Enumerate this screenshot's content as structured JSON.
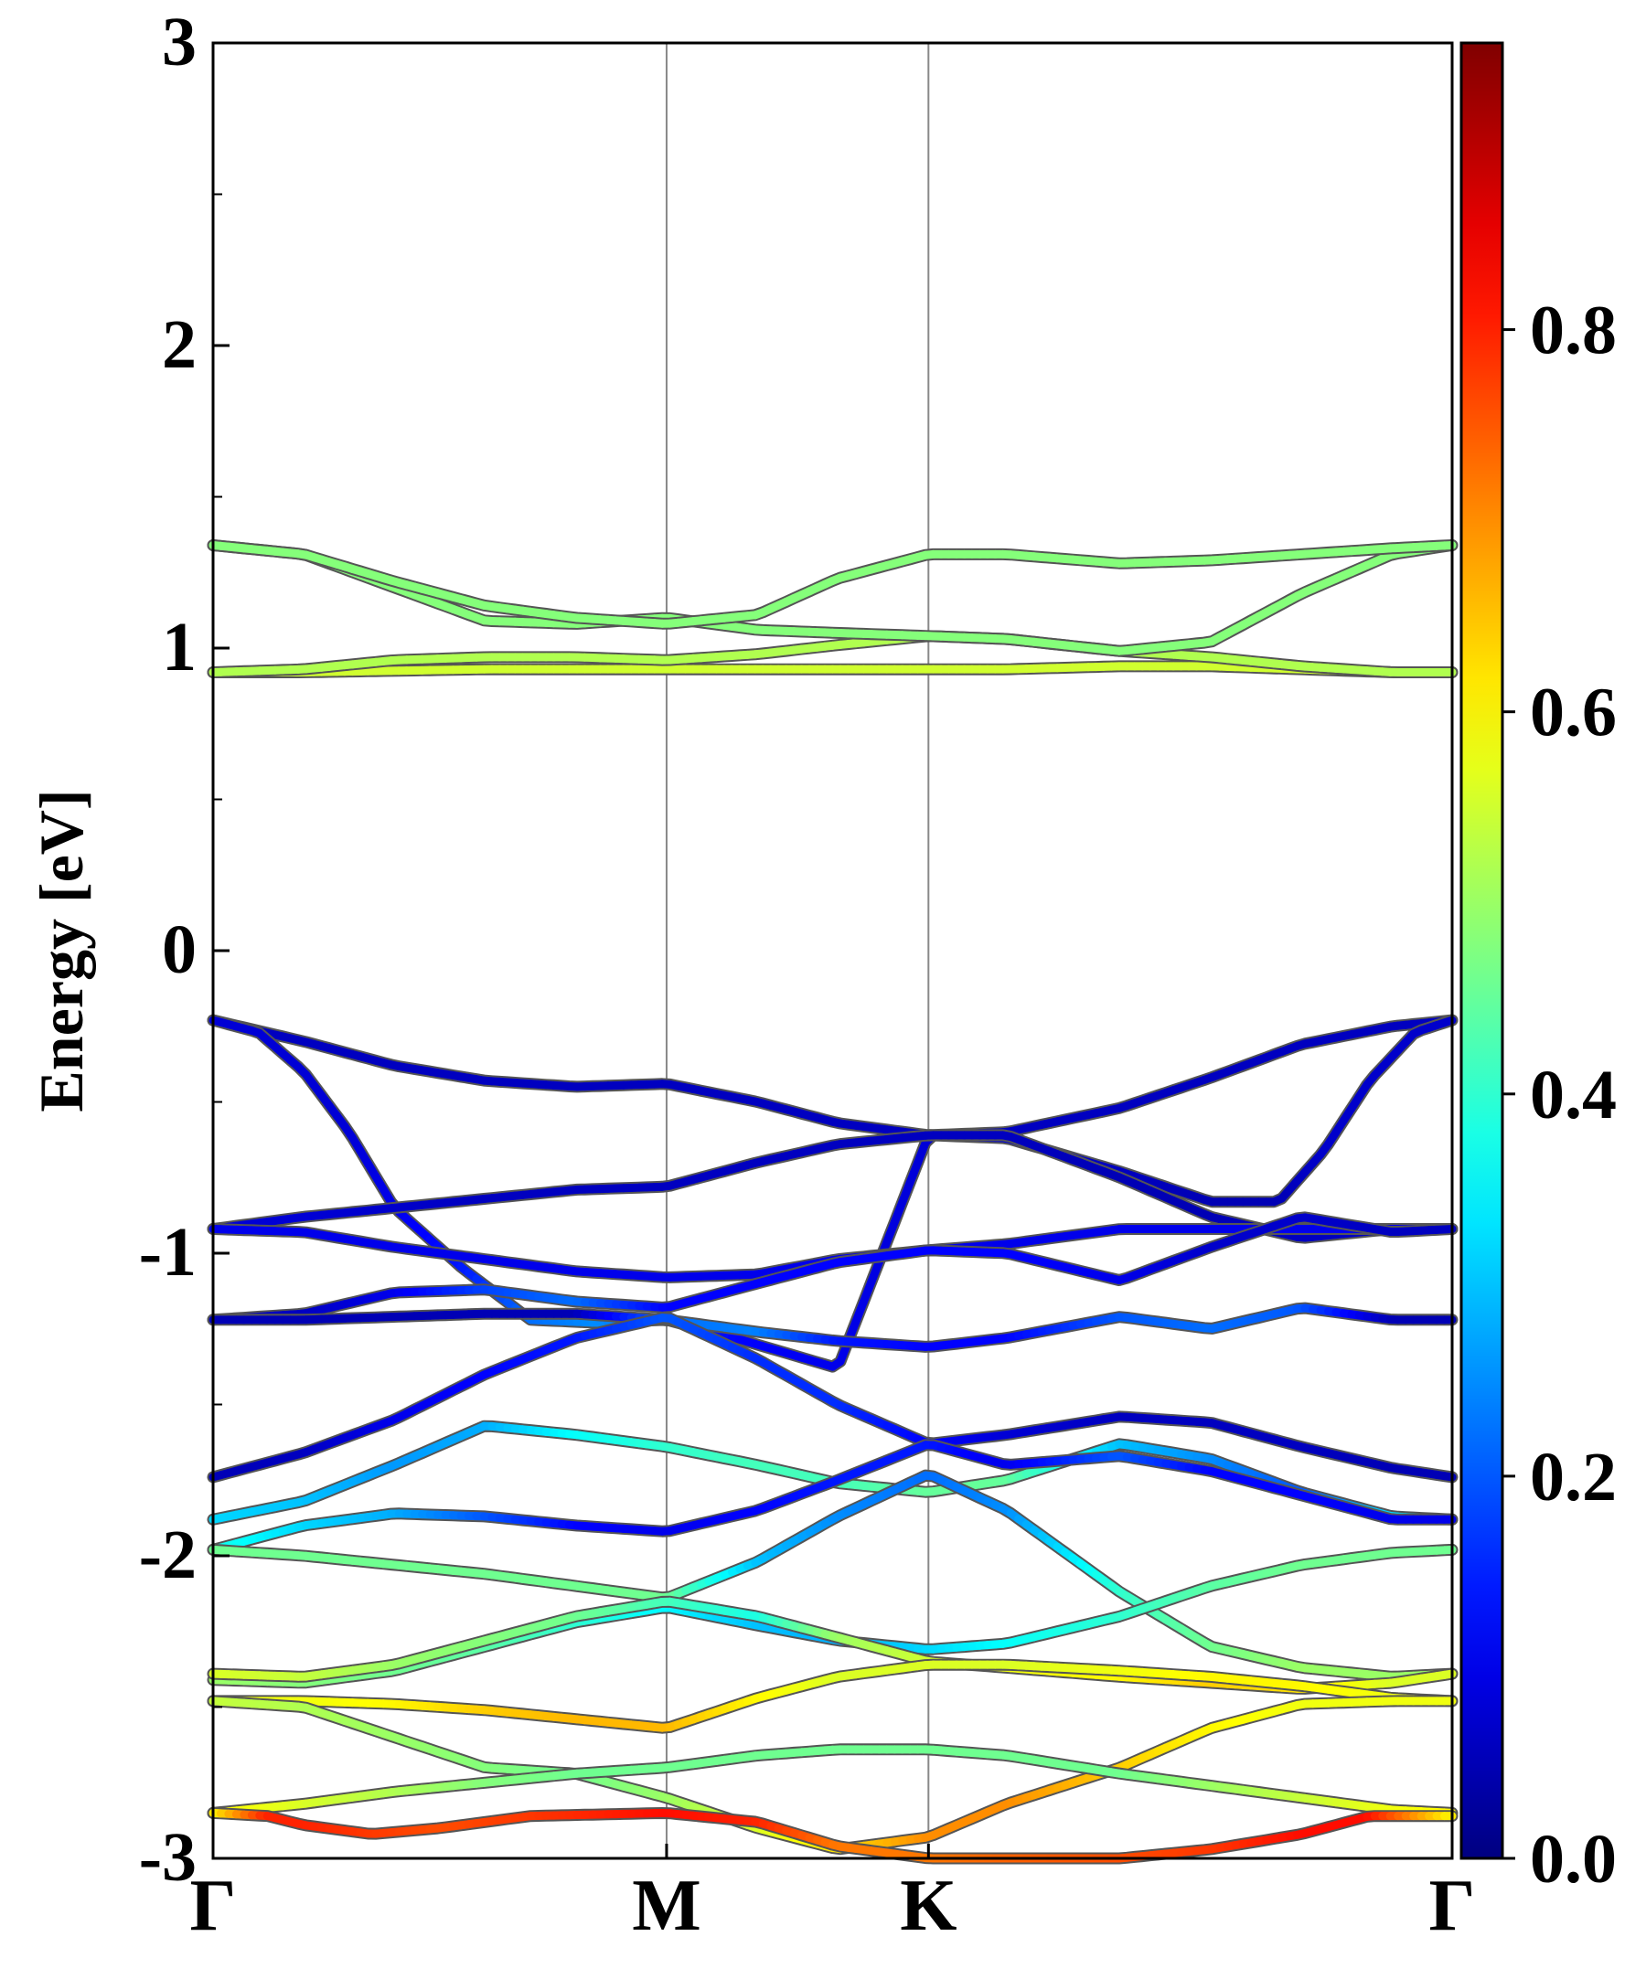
{
  "chart_data": {
    "type": "line",
    "title": "",
    "xlabel": "",
    "ylabel": "Energy [eV]",
    "ylim": [
      -3,
      3
    ],
    "y_ticks": [
      "-3",
      "-2",
      "-1",
      "0",
      "1",
      "2",
      "3"
    ],
    "y_tick_values": [
      -3,
      -2,
      -1,
      0,
      1,
      2,
      3
    ],
    "y_minor_step": 0.5,
    "k_points": [
      "Γ",
      "M",
      "K",
      "Γ"
    ],
    "k_positions": [
      0,
      1,
      1.5774,
      2.7321
    ],
    "colorbar": {
      "colormap": "jet",
      "range": [
        0,
        0.95
      ],
      "ticks": [
        "0.0",
        "0.2",
        "0.4",
        "0.6",
        "0.8"
      ],
      "tick_values": [
        0,
        0.2,
        0.4,
        0.6,
        0.8
      ]
    },
    "series": [
      {
        "x": [
          0,
          0.2,
          0.4,
          0.6,
          0.8,
          1.0,
          1.2,
          1.3774,
          1.5774,
          1.75,
          2.0,
          2.2,
          2.4,
          2.6,
          2.7321
        ],
        "y": [
          0.92,
          0.92,
          0.925,
          0.93,
          0.93,
          0.93,
          0.93,
          0.93,
          0.93,
          0.93,
          0.94,
          0.94,
          0.93,
          0.92,
          0.92
        ],
        "c": [
          0.55,
          0.55,
          0.55,
          0.55,
          0.55,
          0.55,
          0.55,
          0.55,
          0.55,
          0.55,
          0.55,
          0.55,
          0.55,
          0.55,
          0.55
        ]
      },
      {
        "x": [
          0,
          0.2,
          0.4,
          0.6,
          0.8,
          1.0,
          1.2,
          1.3774,
          1.5774,
          1.75,
          2.0,
          2.2,
          2.4,
          2.6,
          2.7321
        ],
        "y": [
          0.92,
          0.93,
          0.96,
          0.97,
          0.97,
          0.96,
          0.98,
          1.01,
          1.04,
          1.03,
          0.99,
          0.97,
          0.94,
          0.92,
          0.92
        ],
        "c": [
          0.52,
          0.52,
          0.52,
          0.52,
          0.52,
          0.52,
          0.52,
          0.52,
          0.52,
          0.52,
          0.52,
          0.52,
          0.52,
          0.52,
          0.52
        ]
      },
      {
        "x": [
          0,
          0.2,
          0.4,
          0.6,
          0.8,
          1.0,
          1.2,
          1.3774,
          1.5774,
          1.75,
          2.0,
          2.2,
          2.4,
          2.6,
          2.7321
        ],
        "y": [
          1.34,
          1.31,
          1.2,
          1.09,
          1.08,
          1.1,
          1.06,
          1.05,
          1.04,
          1.03,
          0.99,
          1.02,
          1.18,
          1.31,
          1.34
        ],
        "c": [
          0.48,
          0.48,
          0.48,
          0.48,
          0.48,
          0.48,
          0.48,
          0.48,
          0.48,
          0.48,
          0.48,
          0.48,
          0.48,
          0.48,
          0.48
        ]
      },
      {
        "x": [
          0,
          0.2,
          0.4,
          0.6,
          0.8,
          1.0,
          1.2,
          1.3774,
          1.5774,
          1.75,
          2.0,
          2.2,
          2.4,
          2.6,
          2.7321
        ],
        "y": [
          1.34,
          1.31,
          1.22,
          1.14,
          1.1,
          1.08,
          1.11,
          1.23,
          1.31,
          1.31,
          1.28,
          1.29,
          1.31,
          1.33,
          1.34
        ],
        "c": [
          0.48,
          0.48,
          0.48,
          0.48,
          0.48,
          0.48,
          0.48,
          0.48,
          0.48,
          0.48,
          0.48,
          0.48,
          0.48,
          0.48,
          0.48
        ]
      },
      {
        "x": [
          0,
          0.2,
          0.4,
          0.6,
          0.8,
          1.0,
          1.2,
          1.3774,
          1.5774,
          1.75,
          2.0,
          2.2,
          2.4,
          2.6,
          2.7321
        ],
        "y": [
          -0.23,
          -0.3,
          -0.38,
          -0.43,
          -0.45,
          -0.44,
          -0.5,
          -0.57,
          -0.61,
          -0.6,
          -0.52,
          -0.42,
          -0.31,
          -0.25,
          -0.23
        ],
        "c": [
          0.06,
          0.06,
          0.06,
          0.06,
          0.06,
          0.06,
          0.06,
          0.06,
          0.06,
          0.06,
          0.06,
          0.06,
          0.06,
          0.06,
          0.06
        ]
      },
      {
        "x": [
          0,
          0.1,
          0.2,
          0.3,
          0.4,
          0.55,
          0.7,
          0.85,
          1.0,
          1.15,
          1.3774,
          1.5774,
          1.75,
          2.0,
          2.2,
          2.35,
          2.45,
          2.55,
          2.65,
          2.7321
        ],
        "y": [
          -0.23,
          -0.27,
          -0.4,
          -0.6,
          -0.85,
          -1.05,
          -1.22,
          -1.23,
          -1.22,
          -1.28,
          -1.38,
          -0.61,
          -0.62,
          -0.73,
          -0.83,
          -0.83,
          -0.66,
          -0.43,
          -0.27,
          -0.23
        ],
        "c": [
          0.08,
          0.08,
          0.08,
          0.08,
          0.1,
          0.14,
          0.22,
          0.25,
          0.2,
          0.12,
          0.1,
          0.08,
          0.08,
          0.06,
          0.05,
          0.05,
          0.07,
          0.07,
          0.07,
          0.07
        ]
      },
      {
        "x": [
          0,
          0.2,
          0.4,
          0.6,
          0.8,
          1.0,
          1.2,
          1.3774,
          1.5774,
          1.75,
          2.0,
          2.2,
          2.4,
          2.6,
          2.7321
        ],
        "y": [
          -0.92,
          -0.88,
          -0.85,
          -0.82,
          -0.79,
          -0.78,
          -0.7,
          -0.64,
          -0.61,
          -0.61,
          -0.75,
          -0.88,
          -0.95,
          -0.92,
          -0.92
        ],
        "c": [
          0.08,
          0.08,
          0.07,
          0.06,
          0.06,
          0.06,
          0.06,
          0.06,
          0.06,
          0.06,
          0.05,
          0.05,
          0.06,
          0.06,
          0.06
        ]
      },
      {
        "x": [
          0,
          0.2,
          0.4,
          0.6,
          0.8,
          1.0,
          1.2,
          1.3774,
          1.5774,
          1.75,
          2.0,
          2.2,
          2.4,
          2.6,
          2.7321
        ],
        "y": [
          -0.92,
          -0.93,
          -0.98,
          -1.02,
          -1.06,
          -1.08,
          -1.07,
          -1.02,
          -0.99,
          -0.97,
          -0.92,
          -0.92,
          -0.92,
          -0.92,
          -0.92
        ],
        "c": [
          0.1,
          0.1,
          0.1,
          0.1,
          0.1,
          0.1,
          0.1,
          0.1,
          0.1,
          0.1,
          0.1,
          0.1,
          0.1,
          0.1,
          0.1
        ]
      },
      {
        "x": [
          0,
          0.2,
          0.4,
          0.6,
          0.8,
          1.0,
          1.2,
          1.3774,
          1.5774,
          1.75,
          2.0,
          2.2,
          2.4,
          2.6,
          2.7321
        ],
        "y": [
          -1.22,
          -1.2,
          -1.13,
          -1.12,
          -1.16,
          -1.18,
          -1.1,
          -1.03,
          -0.99,
          -1.0,
          -1.09,
          -0.98,
          -0.88,
          -0.93,
          -0.92
        ],
        "c": [
          0.06,
          0.06,
          0.1,
          0.18,
          0.22,
          0.12,
          0.12,
          0.12,
          0.12,
          0.12,
          0.1,
          0.07,
          0.07,
          0.06,
          0.06
        ]
      },
      {
        "x": [
          0,
          0.2,
          0.4,
          0.6,
          0.8,
          1.0,
          1.2,
          1.3774,
          1.5774,
          1.75,
          2.0,
          2.2,
          2.4,
          2.6,
          2.7321
        ],
        "y": [
          -1.22,
          -1.22,
          -1.21,
          -1.2,
          -1.2,
          -1.22,
          -1.26,
          -1.29,
          -1.31,
          -1.28,
          -1.21,
          -1.25,
          -1.18,
          -1.22,
          -1.22
        ],
        "c": [
          0.05,
          0.05,
          0.05,
          0.05,
          0.05,
          0.22,
          0.24,
          0.14,
          0.12,
          0.12,
          0.2,
          0.22,
          0.2,
          0.05,
          0.05
        ]
      },
      {
        "x": [
          0,
          0.2,
          0.4,
          0.6,
          0.8,
          1.0,
          1.2,
          1.3774,
          1.5774,
          1.75,
          2.0,
          2.2,
          2.4,
          2.6,
          2.7321
        ],
        "y": [
          -1.74,
          -1.66,
          -1.55,
          -1.4,
          -1.28,
          -1.21,
          -1.35,
          -1.5,
          -1.63,
          -1.6,
          -1.54,
          -1.56,
          -1.64,
          -1.71,
          -1.74
        ],
        "c": [
          0.05,
          0.06,
          0.1,
          0.12,
          0.14,
          0.2,
          0.16,
          0.16,
          0.12,
          0.08,
          0.06,
          0.06,
          0.06,
          0.05,
          0.05
        ]
      },
      {
        "x": [
          0,
          0.2,
          0.4,
          0.6,
          0.8,
          1.0,
          1.2,
          1.3774,
          1.5774,
          1.75,
          2.0,
          2.2,
          2.4,
          2.6,
          2.7321
        ],
        "y": [
          -1.88,
          -1.82,
          -1.7,
          -1.57,
          -1.6,
          -1.64,
          -1.7,
          -1.76,
          -1.79,
          -1.75,
          -1.63,
          -1.68,
          -1.79,
          -1.87,
          -1.88
        ],
        "c": [
          0.32,
          0.3,
          0.26,
          0.28,
          0.36,
          0.4,
          0.42,
          0.42,
          0.45,
          0.45,
          0.3,
          0.25,
          0.2,
          0.32,
          0.32
        ]
      },
      {
        "x": [
          0,
          0.2,
          0.4,
          0.6,
          0.8,
          1.0,
          1.2,
          1.3774,
          1.5774,
          1.75,
          2.0,
          2.2,
          2.4,
          2.6,
          2.7321
        ],
        "y": [
          -1.98,
          -1.9,
          -1.86,
          -1.87,
          -1.9,
          -1.92,
          -1.85,
          -1.75,
          -1.63,
          -1.7,
          -1.67,
          -1.72,
          -1.8,
          -1.88,
          -1.88
        ],
        "c": [
          0.38,
          0.32,
          0.28,
          0.2,
          0.12,
          0.1,
          0.12,
          0.14,
          0.14,
          0.1,
          0.2,
          0.12,
          0.12,
          0.1,
          0.1
        ]
      },
      {
        "x": [
          0,
          0.2,
          0.4,
          0.6,
          0.8,
          1.0,
          1.2,
          1.3774,
          1.5774,
          1.75,
          2.0,
          2.2,
          2.4,
          2.6,
          2.7321
        ],
        "y": [
          -1.98,
          -2.0,
          -2.03,
          -2.06,
          -2.1,
          -2.14,
          -2.02,
          -1.87,
          -1.73,
          -1.85,
          -2.12,
          -2.3,
          -2.37,
          -2.4,
          -2.39
        ],
        "c": [
          0.46,
          0.46,
          0.46,
          0.46,
          0.46,
          0.46,
          0.3,
          0.25,
          0.22,
          0.25,
          0.4,
          0.46,
          0.5,
          0.5,
          0.5
        ]
      },
      {
        "x": [
          0,
          0.2,
          0.4,
          0.6,
          0.8,
          1.0,
          1.2,
          1.3774,
          1.5774,
          1.75,
          2.0,
          2.2,
          2.4,
          2.6,
          2.7321
        ],
        "y": [
          -2.41,
          -2.42,
          -2.38,
          -2.3,
          -2.22,
          -2.17,
          -2.23,
          -2.28,
          -2.31,
          -2.29,
          -2.2,
          -2.1,
          -2.03,
          -1.99,
          -1.98
        ],
        "c": [
          0.5,
          0.48,
          0.46,
          0.44,
          0.4,
          0.35,
          0.3,
          0.28,
          0.32,
          0.36,
          0.4,
          0.44,
          0.46,
          0.46,
          0.46
        ]
      },
      {
        "x": [
          0,
          0.2,
          0.4,
          0.6,
          0.8,
          1.0,
          1.2,
          1.3774,
          1.5774,
          1.75,
          2.0,
          2.2,
          2.4,
          2.6,
          2.7321
        ],
        "y": [
          -2.39,
          -2.4,
          -2.36,
          -2.28,
          -2.2,
          -2.15,
          -2.2,
          -2.27,
          -2.35,
          -2.37,
          -2.4,
          -2.42,
          -2.44,
          -2.42,
          -2.39
        ],
        "c": [
          0.56,
          0.54,
          0.5,
          0.48,
          0.46,
          0.42,
          0.38,
          0.5,
          0.55,
          0.58,
          0.6,
          0.64,
          0.62,
          0.56,
          0.56
        ]
      },
      {
        "x": [
          0,
          0.2,
          0.4,
          0.6,
          0.8,
          1.0,
          1.2,
          1.3774,
          1.5774,
          1.75,
          2.0,
          2.2,
          2.4,
          2.6,
          2.7321
        ],
        "y": [
          -2.48,
          -2.48,
          -2.49,
          -2.51,
          -2.54,
          -2.57,
          -2.47,
          -2.4,
          -2.36,
          -2.36,
          -2.38,
          -2.4,
          -2.43,
          -2.47,
          -2.48
        ],
        "c": [
          0.58,
          0.58,
          0.6,
          0.64,
          0.66,
          0.66,
          0.6,
          0.56,
          0.56,
          0.56,
          0.58,
          0.6,
          0.6,
          0.58,
          0.58
        ]
      },
      {
        "x": [
          0,
          0.2,
          0.4,
          0.6,
          0.8,
          1.0,
          1.2,
          1.3774,
          1.5774,
          1.75,
          2.0,
          2.2,
          2.4,
          2.6,
          2.7321
        ],
        "y": [
          -2.48,
          -2.5,
          -2.6,
          -2.7,
          -2.72,
          -2.8,
          -2.9,
          -2.97,
          -2.93,
          -2.82,
          -2.7,
          -2.57,
          -2.49,
          -2.48,
          -2.48
        ],
        "c": [
          0.54,
          0.52,
          0.5,
          0.48,
          0.46,
          0.5,
          0.56,
          0.62,
          0.7,
          0.7,
          0.64,
          0.6,
          0.58,
          0.58,
          0.58
        ]
      },
      {
        "x": [
          0,
          0.2,
          0.4,
          0.6,
          0.8,
          1.0,
          1.2,
          1.3774,
          1.5774,
          1.75,
          2.0,
          2.2,
          2.4,
          2.6,
          2.7321
        ],
        "y": [
          -2.85,
          -2.82,
          -2.78,
          -2.75,
          -2.72,
          -2.7,
          -2.66,
          -2.64,
          -2.64,
          -2.66,
          -2.72,
          -2.76,
          -2.8,
          -2.84,
          -2.85
        ],
        "c": [
          0.6,
          0.56,
          0.52,
          0.48,
          0.46,
          0.46,
          0.46,
          0.46,
          0.46,
          0.46,
          0.46,
          0.5,
          0.54,
          0.58,
          0.6
        ]
      },
      {
        "x": [
          0,
          0.12,
          0.2,
          0.35,
          0.5,
          0.7,
          1.0,
          1.2,
          1.3774,
          1.5774,
          1.75,
          2.0,
          2.2,
          2.4,
          2.55,
          2.7321
        ],
        "y": [
          -2.85,
          -2.86,
          -2.89,
          -2.92,
          -2.9,
          -2.86,
          -2.85,
          -2.88,
          -2.96,
          -3.0,
          -3.0,
          -3.0,
          -2.97,
          -2.92,
          -2.86,
          -2.86
        ],
        "c": [
          0.6,
          0.8,
          0.8,
          0.78,
          0.76,
          0.78,
          0.82,
          0.8,
          0.72,
          0.72,
          0.74,
          0.76,
          0.78,
          0.82,
          0.82,
          0.6
        ]
      }
    ]
  }
}
